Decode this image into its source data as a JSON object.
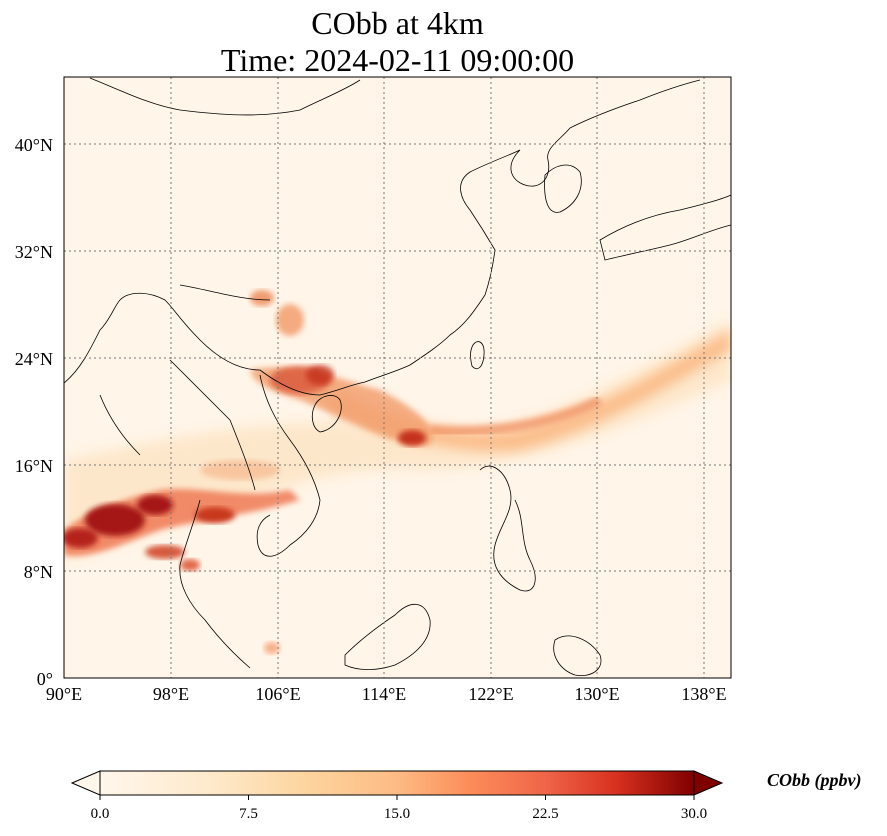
{
  "title": {
    "line1": "CObb at 4km",
    "line2": "Time: 2024-02-11 09:00:00"
  },
  "map": {
    "lon_labels": [
      "90°E",
      "98°E",
      "106°E",
      "114°E",
      "122°E",
      "130°E",
      "138°E"
    ],
    "lat_labels": [
      "40°N",
      "32°N",
      "24°N",
      "16°N",
      "8°N",
      "0°"
    ],
    "gridlines": "dotted"
  },
  "colorbar": {
    "label": "CObb (ppbv)",
    "ticks": [
      "0.0",
      "7.5",
      "15.0",
      "22.5",
      "30.0"
    ],
    "range": [
      0,
      30
    ],
    "extend": "both",
    "colormap": "OrRd",
    "colors": [
      "#fff7ec",
      "#fdd49e",
      "#fc8d59",
      "#d7301f",
      "#7f0000"
    ]
  }
}
